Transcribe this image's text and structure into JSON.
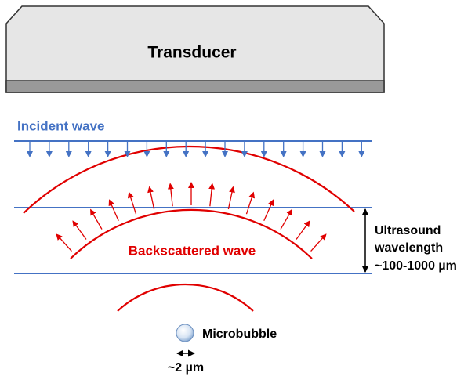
{
  "transducer": {
    "label": "Transducer"
  },
  "incident_wave": {
    "label": "Incident wave"
  },
  "backscattered_wave": {
    "label": "Backscattered wave"
  },
  "wavelength": {
    "lines": [
      "Ultrasound",
      "wavelength",
      "~100-1000 µm"
    ]
  },
  "microbubble": {
    "label": "Microbubble",
    "size": "~2 µm"
  }
}
